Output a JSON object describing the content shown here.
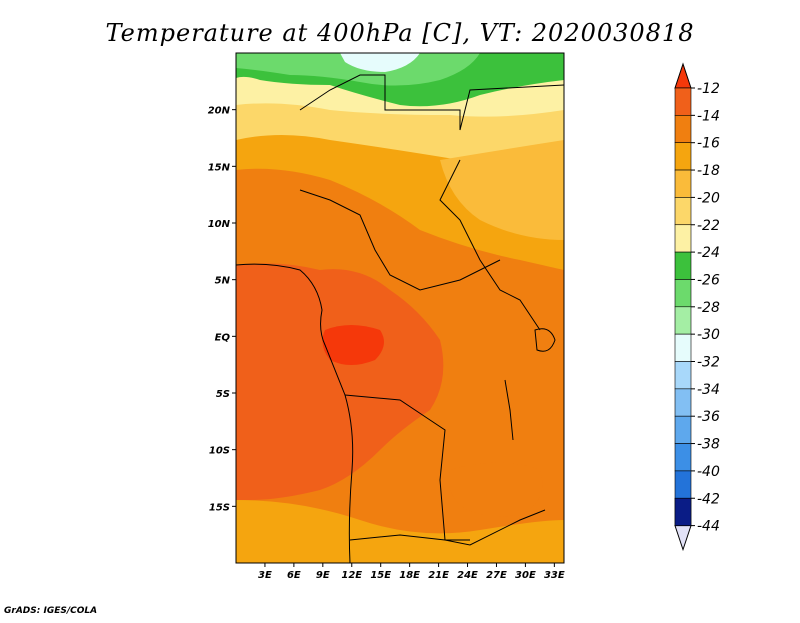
{
  "chart_data": {
    "type": "heatmap",
    "title": "Temperature at 400hPa [C], VT: 2020030818",
    "variable": "Temperature",
    "level": "400hPa",
    "units": "C",
    "valid_time": "2020030818",
    "x_axis": {
      "range": [
        0,
        34
      ],
      "ticks": [
        3,
        6,
        9,
        12,
        15,
        18,
        21,
        24,
        27,
        30,
        33
      ],
      "tick_labels": [
        "3E",
        "6E",
        "9E",
        "12E",
        "15E",
        "18E",
        "21E",
        "24E",
        "27E",
        "30E",
        "33E"
      ]
    },
    "y_axis": {
      "range": [
        -20,
        25
      ],
      "ticks": [
        20,
        15,
        10,
        5,
        0,
        -5,
        -10,
        -15
      ],
      "tick_labels": [
        "20N",
        "15N",
        "10N",
        "5N",
        "EQ",
        "5S",
        "10S",
        "15S"
      ]
    },
    "colorbar": {
      "levels": [
        -12,
        -14,
        -16,
        -18,
        -20,
        -22,
        -24,
        -26,
        -28,
        -30,
        -32,
        -34,
        -36,
        -38,
        -40,
        -42,
        -44
      ],
      "labels": [
        "-12",
        "-14",
        "-16",
        "-18",
        "-20",
        "-22",
        "-24",
        "-26",
        "-28",
        "-30",
        "-32",
        "-34",
        "-36",
        "-38",
        "-40",
        "-42",
        "-44"
      ],
      "colors": [
        "#f0601a",
        "#f07f10",
        "#f5a50f",
        "#fabb3a",
        "#fcd769",
        "#fdf1a4",
        "#3cc13c",
        "#6cda6c",
        "#a4eea4",
        "#e6fcfc",
        "#a8d8fa",
        "#82bff3",
        "#5ea8ed",
        "#3c8fe6",
        "#2373d9",
        "#1456c6",
        "#0a1c86"
      ],
      "over_color": "#f5380a",
      "under_color": "#e2e2f7"
    },
    "regions": [
      {
        "name": "northern green band (Sahara)",
        "approx_value": -24
      },
      {
        "name": "northern cyan patch",
        "approx_value": -30
      },
      {
        "name": "Sahel belt",
        "approx_value": -20
      },
      {
        "name": "Gulf of Guinea / Congo basin",
        "approx_value": -13
      },
      {
        "name": "central Congo core",
        "approx_value": -12
      },
      {
        "name": "east Africa",
        "approx_value": -15
      },
      {
        "name": "southern Africa",
        "approx_value": -16
      }
    ],
    "background_color": "#ffffff"
  },
  "credit": "GrADS: IGES/COLA"
}
